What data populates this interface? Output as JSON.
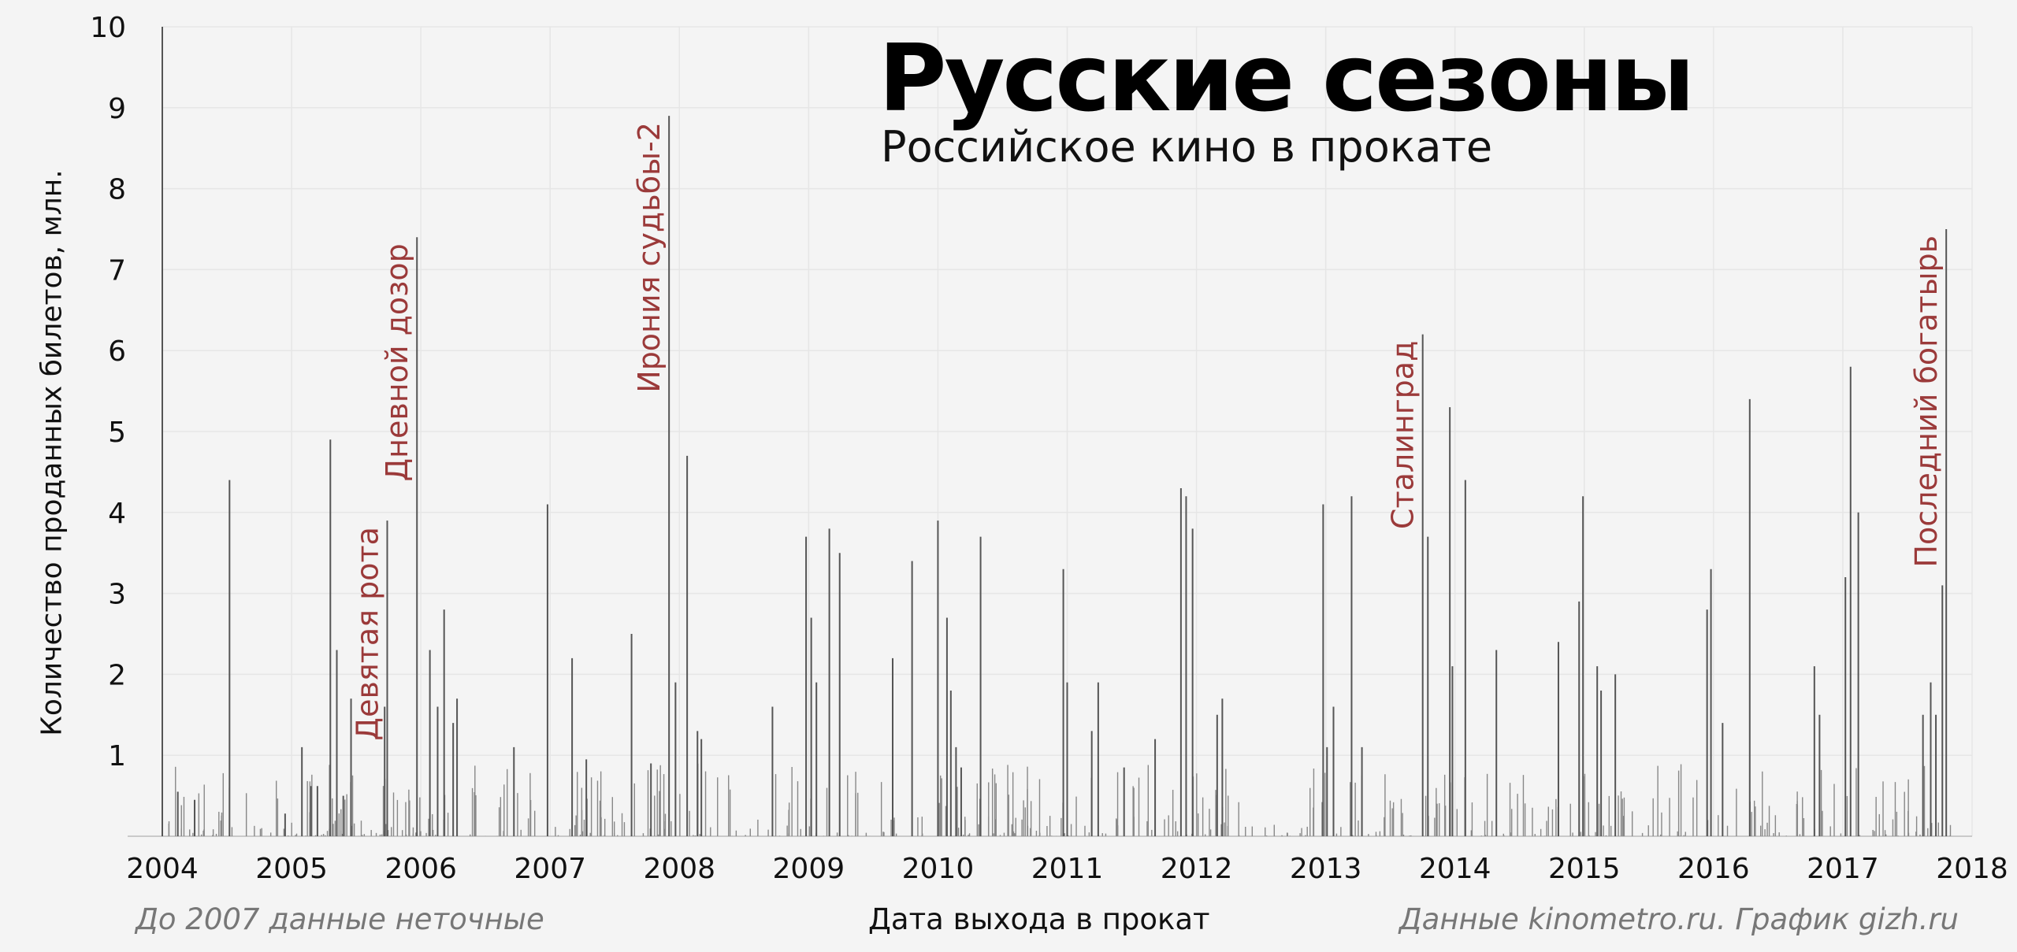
{
  "chart_data": {
    "type": "bar",
    "title": "Русские сезоны",
    "subtitle": "Российское кино в прокате",
    "xlabel": "Дата выхода в прокат",
    "ylabel": "Количество проданных билетов, млн.",
    "note_left": "До 2007 данные неточные",
    "note_right": "Данные kinometro.ru. График gizh.ru",
    "xlim": [
      2004.0,
      2018.0
    ],
    "ylim": [
      0,
      10
    ],
    "x_ticks": [
      "2004",
      "2005",
      "2006",
      "2007",
      "2008",
      "2009",
      "2010",
      "2011",
      "2012",
      "2013",
      "2014",
      "2015",
      "2016",
      "2017",
      "2018"
    ],
    "y_ticks": [
      "1",
      "2",
      "3",
      "4",
      "5",
      "6",
      "7",
      "8",
      "9",
      "10"
    ],
    "grid": true,
    "colors": {
      "bars": "#555555",
      "annotations": "#9b3a3a",
      "grid": "#e6e6e6"
    },
    "x": [
      2004.0,
      2004.12,
      2004.25,
      2004.52,
      2004.95,
      2005.08,
      2005.15,
      2005.2,
      2005.3,
      2005.35,
      2005.4,
      2005.46,
      2005.72,
      2005.74,
      2005.97,
      2006.07,
      2006.13,
      2006.18,
      2006.25,
      2006.28,
      2006.72,
      2006.98,
      2007.17,
      2007.28,
      2007.63,
      2007.78,
      2007.92,
      2007.97,
      2008.06,
      2008.14,
      2008.17,
      2008.72,
      2008.98,
      2009.02,
      2009.06,
      2009.16,
      2009.24,
      2009.65,
      2009.8,
      2010.0,
      2010.07,
      2010.1,
      2010.14,
      2010.18,
      2010.33,
      2010.97,
      2011.0,
      2011.19,
      2011.24,
      2011.44,
      2011.68,
      2011.88,
      2011.92,
      2011.97,
      2012.16,
      2012.2,
      2012.98,
      2013.01,
      2013.06,
      2013.2,
      2013.28,
      2013.75,
      2013.79,
      2013.96,
      2013.98,
      2014.08,
      2014.32,
      2014.8,
      2014.96,
      2014.99,
      2015.1,
      2015.13,
      2015.24,
      2015.95,
      2015.98,
      2016.07,
      2016.28,
      2016.78,
      2016.82,
      2017.02,
      2017.06,
      2017.12,
      2017.62,
      2017.68,
      2017.72,
      2017.77,
      2017.8
    ],
    "values": [
      10.0,
      0.55,
      0.45,
      4.4,
      0.28,
      1.1,
      0.62,
      0.62,
      4.9,
      2.3,
      0.5,
      1.7,
      1.6,
      3.9,
      7.4,
      2.3,
      1.6,
      2.8,
      1.4,
      1.7,
      1.1,
      4.1,
      2.2,
      0.95,
      2.5,
      0.9,
      8.9,
      1.9,
      4.7,
      1.3,
      1.2,
      1.6,
      3.7,
      2.7,
      1.9,
      3.8,
      3.5,
      2.2,
      3.4,
      3.9,
      2.7,
      1.8,
      1.1,
      0.85,
      3.7,
      3.3,
      1.9,
      1.3,
      1.9,
      0.85,
      1.2,
      4.3,
      4.2,
      3.8,
      1.5,
      1.7,
      4.1,
      1.1,
      1.6,
      4.2,
      1.1,
      6.2,
      3.7,
      5.3,
      2.1,
      4.4,
      2.3,
      2.4,
      2.9,
      4.2,
      2.1,
      1.8,
      2.0,
      2.8,
      3.3,
      1.4,
      5.4,
      2.1,
      1.5,
      3.2,
      5.8,
      4.0,
      1.5,
      1.9,
      1.5,
      3.1,
      7.5
    ],
    "annotations": [
      {
        "label": "Девятая рота",
        "x": 2005.74,
        "y": 3.9
      },
      {
        "label": "Дневной дозор",
        "x": 2005.97,
        "y": 7.4
      },
      {
        "label": "Ирония судьбы-2",
        "x": 2007.92,
        "y": 8.9
      },
      {
        "label": "Сталинград",
        "x": 2013.75,
        "y": 6.2
      },
      {
        "label": "Последний богатырь",
        "x": 2017.8,
        "y": 7.5
      }
    ]
  }
}
